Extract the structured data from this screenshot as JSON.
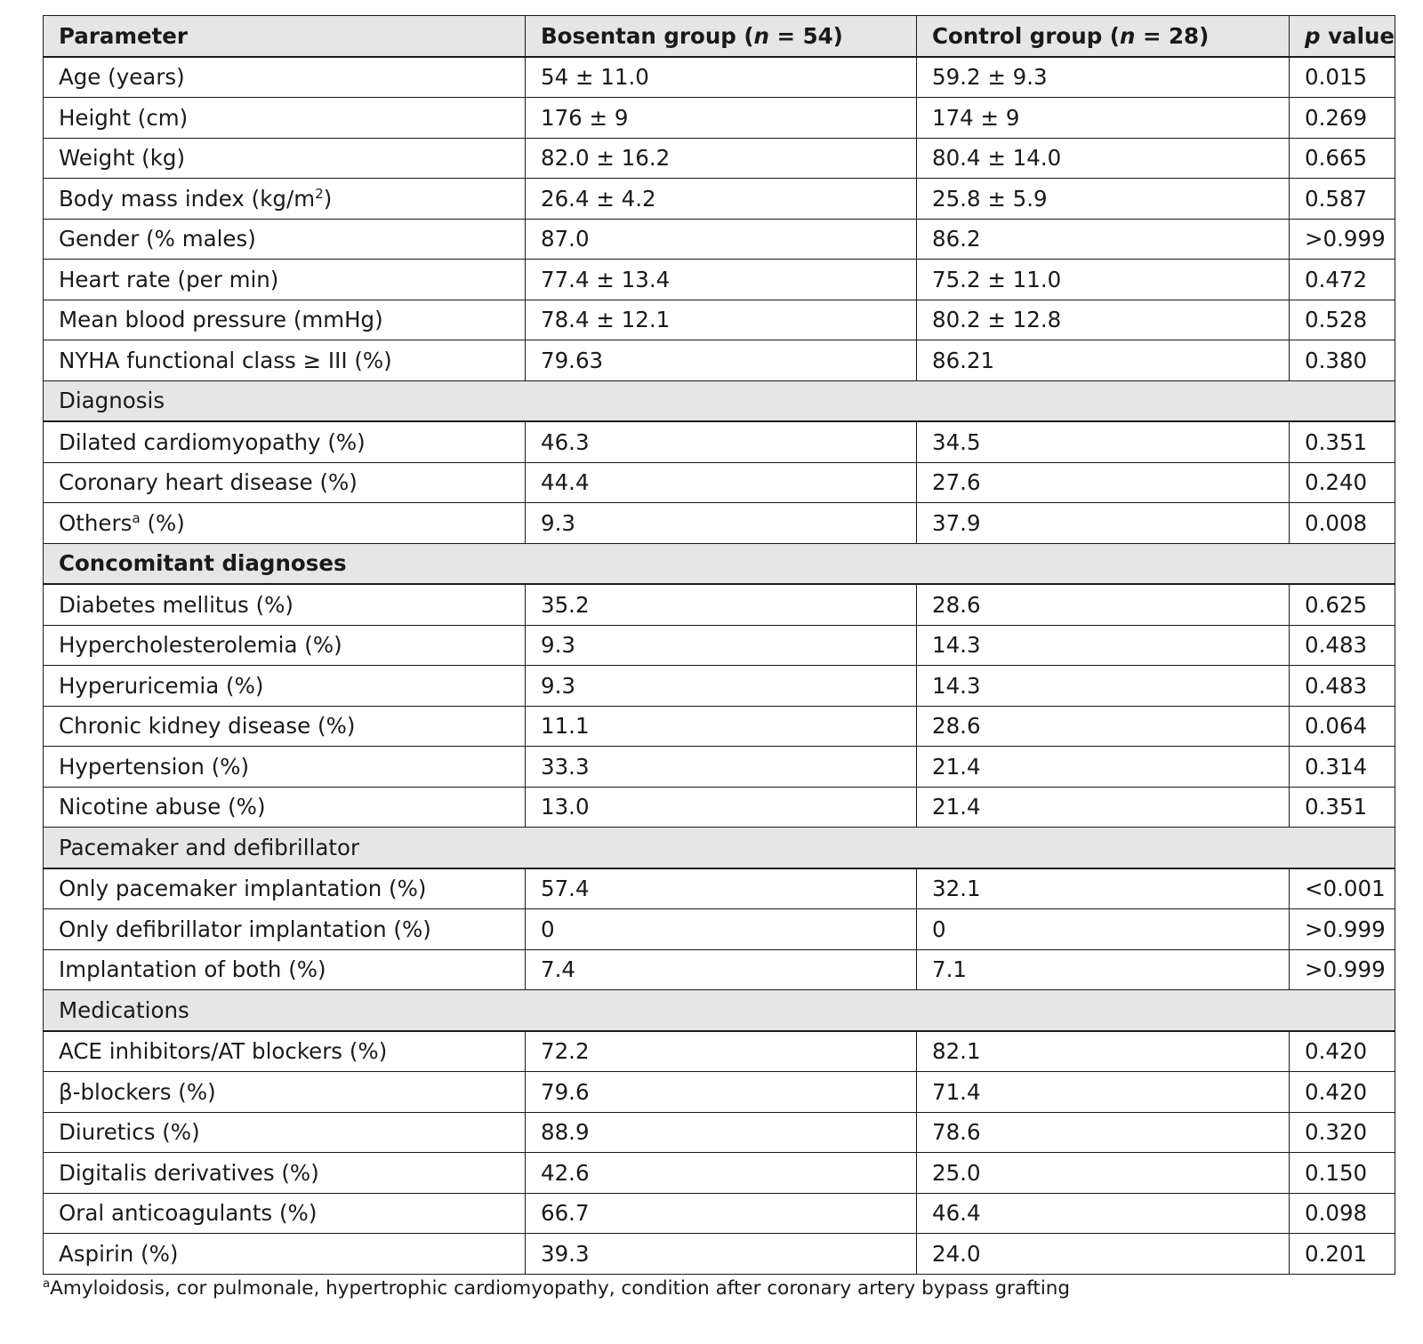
{
  "table": {
    "header": {
      "parameter": "Parameter",
      "bosentan_prefix": "Bosentan group (",
      "bosentan_n": "n",
      "bosentan_suffix": " = 54)",
      "control_prefix": "Control group (",
      "control_n": "n",
      "control_suffix": " = 28)",
      "p_italic": "p",
      "p_rest": " value"
    },
    "rows": [
      {
        "kind": "data",
        "parameter": "Age (years)",
        "bosentan": "54 ± 11.0",
        "control": "59.2 ± 9.3",
        "p": "0.015"
      },
      {
        "kind": "data",
        "parameter": "Height (cm)",
        "bosentan": "176 ± 9",
        "control": "174 ± 9",
        "p": "0.269"
      },
      {
        "kind": "data",
        "parameter": "Weight (kg)",
        "bosentan": "82.0 ± 16.2",
        "control": "80.4 ± 14.0",
        "p": "0.665"
      },
      {
        "kind": "data",
        "parameter": "Body mass index (kg/m",
        "parameter_sup": "2",
        "parameter_tail": ")",
        "bosentan": "26.4 ± 4.2",
        "control": "25.8 ± 5.9",
        "p": "0.587"
      },
      {
        "kind": "data",
        "parameter": "Gender (% males)",
        "bosentan": "87.0",
        "control": "86.2",
        "p": ">0.999"
      },
      {
        "kind": "data",
        "parameter": "Heart rate (per min)",
        "bosentan": "77.4 ± 13.4",
        "control": "75.2 ± 11.0",
        "p": "0.472"
      },
      {
        "kind": "data",
        "parameter": "Mean blood pressure (mmHg)",
        "bosentan": "78.4 ± 12.1",
        "control": "80.2 ± 12.8",
        "p": "0.528"
      },
      {
        "kind": "data",
        "parameter": "NYHA functional class ≥ III (%)",
        "bosentan": "79.63",
        "control": "86.21",
        "p": "0.380"
      },
      {
        "kind": "section",
        "label": "Diagnosis",
        "bold": false
      },
      {
        "kind": "data",
        "parameter": "Dilated cardiomyopathy (%)",
        "bosentan": "46.3",
        "control": "34.5",
        "p": "0.351"
      },
      {
        "kind": "data",
        "parameter": "Coronary heart disease (%)",
        "bosentan": "44.4",
        "control": "27.6",
        "p": "0.240"
      },
      {
        "kind": "data",
        "parameter": "Others",
        "parameter_sup": "a",
        "parameter_tail": " (%)",
        "bosentan": "9.3",
        "control": "37.9",
        "p": "0.008"
      },
      {
        "kind": "section",
        "label": "Concomitant diagnoses",
        "bold": true
      },
      {
        "kind": "data",
        "parameter": "Diabetes mellitus (%)",
        "bosentan": "35.2",
        "control": "28.6",
        "p": "0.625"
      },
      {
        "kind": "data",
        "parameter": "Hypercholesterolemia (%)",
        "bosentan": "9.3",
        "control": "14.3",
        "p": "0.483"
      },
      {
        "kind": "data",
        "parameter": "Hyperuricemia (%)",
        "bosentan": "9.3",
        "control": "14.3",
        "p": "0.483"
      },
      {
        "kind": "data",
        "parameter": "Chronic kidney disease (%)",
        "bosentan": "11.1",
        "control": "28.6",
        "p": "0.064"
      },
      {
        "kind": "data",
        "parameter": "Hypertension (%)",
        "bosentan": "33.3",
        "control": "21.4",
        "p": "0.314"
      },
      {
        "kind": "data",
        "parameter": "Nicotine abuse (%)",
        "bosentan": "13.0",
        "control": "21.4",
        "p": "0.351"
      },
      {
        "kind": "section",
        "label": "Pacemaker and defibrillator",
        "bold": false
      },
      {
        "kind": "data",
        "parameter": "Only pacemaker implantation (%)",
        "bosentan": "57.4",
        "control": "32.1",
        "p": "<0.001"
      },
      {
        "kind": "data",
        "parameter": "Only defibrillator implantation (%)",
        "bosentan": "0",
        "control": "0",
        "p": ">0.999"
      },
      {
        "kind": "data",
        "parameter": "Implantation of both (%)",
        "bosentan": "7.4",
        "control": "7.1",
        "p": ">0.999"
      },
      {
        "kind": "section",
        "label": "Medications",
        "bold": false
      },
      {
        "kind": "data",
        "parameter": "ACE inhibitors/AT blockers (%)",
        "bosentan": "72.2",
        "control": "82.1",
        "p": "0.420"
      },
      {
        "kind": "data",
        "parameter": "β-blockers (%)",
        "bosentan": "79.6",
        "control": "71.4",
        "p": "0.420"
      },
      {
        "kind": "data",
        "parameter": "Diuretics (%)",
        "bosentan": "88.9",
        "control": "78.6",
        "p": "0.320"
      },
      {
        "kind": "data",
        "parameter": "Digitalis derivatives (%)",
        "bosentan": "42.6",
        "control": "25.0",
        "p": "0.150"
      },
      {
        "kind": "data",
        "parameter": "Oral anticoagulants (%)",
        "bosentan": "66.7",
        "control": "46.4",
        "p": "0.098"
      },
      {
        "kind": "data",
        "parameter": "Aspirin (%)",
        "bosentan": "39.3",
        "control": "24.0",
        "p": "0.201"
      }
    ]
  },
  "footnote": {
    "marker": "a",
    "text": "Amyloidosis, cor pulmonale, hypertrophic cardiomyopathy, condition after coronary artery bypass grafting"
  }
}
